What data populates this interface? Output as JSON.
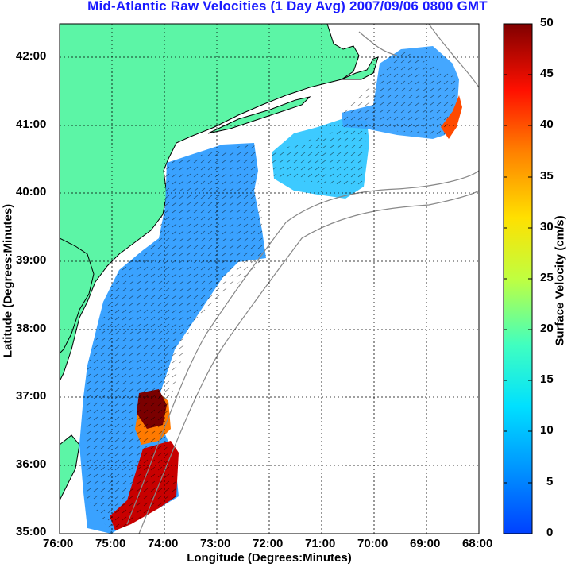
{
  "title": "Mid-Atlantic Raw Velocities (1 Day Avg) 2007/09/06 0800 GMT",
  "x_axis": {
    "label": "Longitude (Degrees:Minutes)",
    "ticks": [
      "76:00",
      "75:00",
      "74:00",
      "73:00",
      "72:00",
      "71:00",
      "70:00",
      "69:00",
      "68:00"
    ]
  },
  "y_axis": {
    "label": "Latitude (Degrees:Minutes)",
    "ticks": [
      "42:00",
      "41:00",
      "40:00",
      "39:00",
      "38:00",
      "37:00",
      "36:00",
      "35:00"
    ]
  },
  "colorbar": {
    "label": "Surface Velocity (cm/s)",
    "ticks": [
      "50",
      "45",
      "40",
      "35",
      "30",
      "25",
      "20",
      "15",
      "10",
      "5",
      "0"
    ],
    "range": [
      0,
      50
    ],
    "colormap": "jet"
  },
  "colors": {
    "land": "#5cf5a6",
    "coast_line": "#000000",
    "bathymetry": "#888888",
    "title": "#1a1aff",
    "grid": "#000000"
  }
}
